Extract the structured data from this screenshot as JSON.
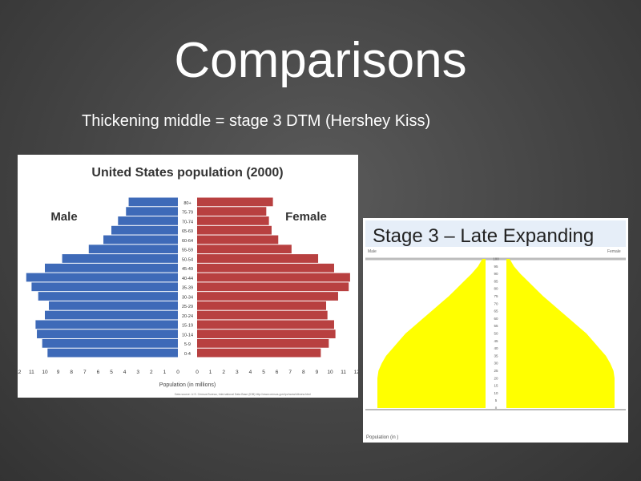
{
  "slide": {
    "title": "Comparisons",
    "subtitle": "Thickening middle = stage 3 DTM (Hershey Kiss)"
  },
  "chart_data": [
    {
      "type": "bar",
      "title": "United States population (2000)",
      "xlabel": "Population",
      "xlabel_unit": "(in millions)",
      "categories": [
        "80+",
        "75-79",
        "70-74",
        "65-69",
        "60-64",
        "55-59",
        "50-54",
        "45-49",
        "40-44",
        "35-39",
        "30-34",
        "25-29",
        "20-24",
        "15-19",
        "10-14",
        "5-9",
        "0-4"
      ],
      "series": [
        {
          "name": "Male",
          "color": "#3e6ab8",
          "values": [
            3.7,
            3.9,
            4.5,
            5.0,
            5.6,
            6.7,
            8.7,
            10.0,
            11.4,
            11.0,
            10.5,
            9.7,
            10.0,
            10.7,
            10.6,
            10.2,
            9.8
          ]
        },
        {
          "name": "Female",
          "color": "#b84040",
          "values": [
            5.7,
            5.2,
            5.4,
            5.6,
            6.1,
            7.1,
            9.1,
            10.3,
            11.5,
            11.4,
            10.6,
            9.7,
            9.8,
            10.3,
            10.4,
            9.9,
            9.3
          ]
        }
      ],
      "xticks": [
        "12",
        "11",
        "10",
        "9",
        "8",
        "7",
        "6",
        "5",
        "4",
        "3",
        "2",
        "1",
        "0",
        "0",
        "1",
        "2",
        "3",
        "4",
        "5",
        "6",
        "7",
        "8",
        "9",
        "10",
        "11",
        "12"
      ],
      "xlim": [
        0,
        12
      ],
      "source": "Data source: U.S. Census Bureau, International Data Base (IDB) http://www.census.gov/ipc/www/idbnew.html"
    },
    {
      "type": "area",
      "title": "Stage 3 – Late Expanding",
      "left_label": "Male",
      "right_label": "Female",
      "xlabel": "Population (in )",
      "color": "#ffff00",
      "categories": [
        "0",
        "5",
        "10",
        "15",
        "20",
        "25",
        "30",
        "35",
        "40",
        "45",
        "50",
        "55",
        "60",
        "65",
        "70",
        "75",
        "80",
        "85",
        "90",
        "95",
        "100"
      ],
      "values": [
        1.0,
        1.0,
        1.0,
        1.0,
        1.0,
        0.99,
        0.96,
        0.92,
        0.86,
        0.8,
        0.74,
        0.66,
        0.58,
        0.5,
        0.42,
        0.34,
        0.27,
        0.2,
        0.13,
        0.07,
        0.03
      ]
    }
  ]
}
